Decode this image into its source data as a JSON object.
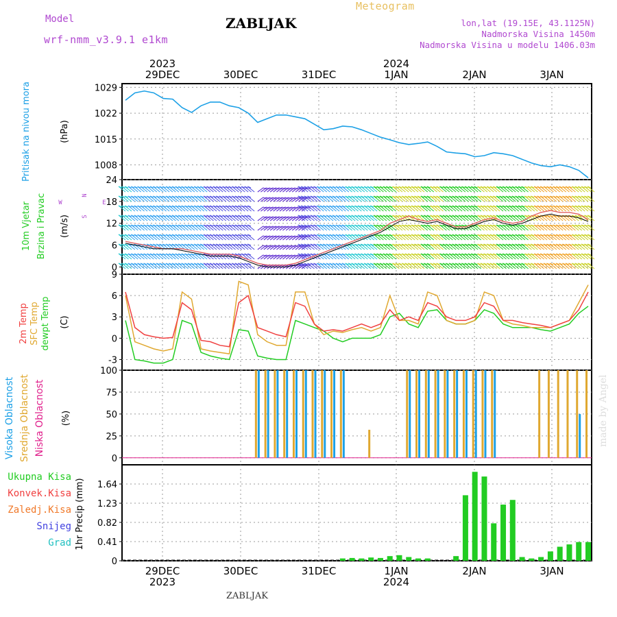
{
  "header": {
    "model_label": "Model",
    "model_name": "wrf-nmm_v3.9.1  e1km",
    "title": "ZABLJAK",
    "subtitle": "Meteogram",
    "coords": "lon,lat (19.15E, 43.1125N)",
    "altitude": "Nadmorska Visina 1450m",
    "model_altitude": "Nadmorska Visina u modelu 1406.03m",
    "footer_station": "ZABLJAK",
    "watermark": "made by Angel"
  },
  "colors": {
    "pressure": "#1ca0e6",
    "temp2m": "#f04040",
    "sfc": "#e0a830",
    "dewpt": "#22cc22",
    "high_cloud": "#1ca0e6",
    "mid_cloud": "#e0a830",
    "low_cloud": "#e0208c",
    "precip": "#22cc22",
    "convective": "#f04040",
    "freezing": "#f07828",
    "snow": "#4040e0",
    "graupel": "#20c0c0",
    "purple": "#b048d0",
    "gold": "#e8c060"
  },
  "time_axis": {
    "top_years": [
      "2023",
      "2024"
    ],
    "days": [
      "29DEC",
      "30DEC",
      "31DEC",
      "1JAN",
      "2JAN",
      "3JAN"
    ],
    "bottom_years": [
      "2023",
      "2024"
    ]
  },
  "chart_data": [
    {
      "type": "line",
      "panel": "pressure",
      "ylabel_main": "Pritisak na nivou mora",
      "ylabel_unit": "(hPa)",
      "x_hours": [
        0,
        3,
        6,
        9,
        12,
        15,
        18,
        21,
        24,
        27,
        30,
        33,
        36,
        39,
        42,
        45,
        48,
        51,
        54,
        57,
        60,
        63,
        66,
        69,
        72,
        75,
        78,
        81,
        84,
        87,
        90,
        93,
        96,
        99,
        102,
        105,
        108,
        111,
        114,
        117,
        120,
        123,
        126,
        129,
        132,
        135,
        138,
        141,
        144,
        147
      ],
      "series": [
        {
          "values": [
            1025.5,
            1027.5,
            1028,
            1027.5,
            1026,
            1025.8,
            1023.5,
            1022.2,
            1024,
            1025,
            1025,
            1024,
            1023.5,
            1022,
            1019.5,
            1020.5,
            1021.5,
            1021.5,
            1021,
            1020.5,
            1019,
            1017.5,
            1017.8,
            1018.5,
            1018.3,
            1017.5,
            1016.5,
            1015.5,
            1014.8,
            1014,
            1013.5,
            1013.8,
            1014.2,
            1013,
            1011.5,
            1011.2,
            1011,
            1010.2,
            1010.5,
            1011.3,
            1011,
            1010.5,
            1009.5,
            1008.5,
            1007.8,
            1007.5,
            1008,
            1007.5,
            1006.5,
            1004.5
          ]
        }
      ],
      "yticks": [
        1008,
        1015,
        1022,
        1029
      ],
      "ylim": [
        1004,
        1030
      ]
    },
    {
      "type": "line",
      "panel": "wind",
      "ylabel_main": "10m Vjetar",
      "ylabel_sub": "Brzina i Pravac",
      "ylabel_unit": "(m/s)",
      "compass": {
        "n": "N",
        "s": "S",
        "e": "E",
        "w": "W"
      },
      "x_hours": [
        0,
        3,
        6,
        9,
        12,
        15,
        18,
        21,
        24,
        27,
        30,
        33,
        36,
        39,
        42,
        45,
        48,
        51,
        54,
        57,
        60,
        63,
        66,
        69,
        72,
        75,
        78,
        81,
        84,
        87,
        90,
        93,
        96,
        99,
        102,
        105,
        108,
        111,
        114,
        117,
        120,
        123,
        126,
        129,
        132,
        135,
        138,
        141,
        144,
        147
      ],
      "series": [
        {
          "values": [
            7,
            6.5,
            6,
            5.5,
            5,
            5,
            5,
            4.5,
            4,
            3.5,
            3.5,
            3.5,
            3,
            2,
            1,
            0.5,
            0.5,
            0.5,
            1,
            2,
            3,
            4,
            5,
            6,
            7,
            8,
            9,
            10,
            12,
            13,
            14,
            13,
            12.5,
            13,
            12,
            11,
            11,
            12,
            13,
            13.5,
            12.5,
            12,
            12.5,
            14,
            15,
            15.5,
            15,
            15,
            14.5,
            13
          ]
        },
        {
          "values": [
            6.5,
            6,
            5.5,
            5,
            5,
            5,
            4.5,
            4,
            3.5,
            3,
            3,
            3,
            2.5,
            1.5,
            0.5,
            0,
            0,
            0,
            0.5,
            1.5,
            2.5,
            3.5,
            4.5,
            5.5,
            6.5,
            7.5,
            8.5,
            9.5,
            11,
            12.5,
            13,
            12.5,
            12,
            12.5,
            11.5,
            10.5,
            10.5,
            11.5,
            12.5,
            13,
            12,
            11.5,
            12,
            13,
            14,
            14.5,
            14,
            14,
            13.5,
            12.5
          ]
        }
      ],
      "yticks": [
        0,
        6,
        12,
        18,
        24
      ],
      "ylim": [
        -2,
        24
      ]
    },
    {
      "type": "line",
      "panel": "temperature",
      "ylabels": [
        "2m Temp",
        "SFC Temp",
        "dewpt Temp"
      ],
      "ylabel_unit": "(C)",
      "x_hours": [
        0,
        3,
        6,
        9,
        12,
        15,
        18,
        21,
        24,
        27,
        30,
        33,
        36,
        39,
        42,
        45,
        48,
        51,
        54,
        57,
        60,
        63,
        66,
        69,
        72,
        75,
        78,
        81,
        84,
        87,
        90,
        93,
        96,
        99,
        102,
        105,
        108,
        111,
        114,
        117,
        120,
        123,
        126,
        129,
        132,
        135,
        138,
        141,
        144,
        147
      ],
      "series": [
        {
          "name": "2m Temp",
          "values": [
            6.5,
            1.5,
            0.5,
            0.2,
            0,
            0.1,
            5,
            4,
            -0.3,
            -0.5,
            -1,
            -1.2,
            5,
            6,
            1.5,
            1,
            0.5,
            0.2,
            5,
            4.5,
            2,
            1,
            1.2,
            1,
            1.5,
            2,
            1.5,
            2,
            4,
            2.5,
            3,
            2.5,
            5,
            4.5,
            3,
            2.5,
            2.5,
            3,
            5,
            4.5,
            2.5,
            2.5,
            2.2,
            2,
            1.8,
            1.5,
            2,
            2.5,
            4,
            6.5
          ]
        },
        {
          "name": "SFC Temp",
          "values": [
            6,
            -0.5,
            -1,
            -1.5,
            -1.8,
            -1.5,
            6.5,
            5.5,
            -1.5,
            -1.8,
            -2,
            -2.2,
            8,
            7.5,
            0.5,
            -0.5,
            -1,
            -1,
            6.5,
            6.5,
            2,
            0.5,
            1,
            0.8,
            1.2,
            1.5,
            1,
            1.5,
            6,
            2.5,
            2.5,
            2,
            6.5,
            6,
            2.5,
            2,
            2,
            2.5,
            6.5,
            6,
            2.5,
            2,
            1.8,
            1.5,
            1.5,
            1.5,
            2,
            2.5,
            5,
            7.5
          ]
        },
        {
          "name": "dewpt Temp",
          "values": [
            2.5,
            -3,
            -3.2,
            -3.5,
            -3.5,
            -3,
            2.5,
            2,
            -2,
            -2.5,
            -2.8,
            -3,
            1.2,
            1,
            -2.5,
            -2.8,
            -3,
            -3,
            2.5,
            2,
            1.5,
            1,
            0,
            -0.5,
            0,
            0,
            0,
            0.5,
            3,
            3.5,
            2,
            1.5,
            3.8,
            4,
            2.5,
            2,
            2,
            2.5,
            4,
            3.5,
            2,
            1.5,
            1.5,
            1.5,
            1.2,
            1,
            1.5,
            2,
            3.5,
            4.5
          ]
        }
      ],
      "yticks": [
        -3,
        0,
        3,
        6,
        9
      ],
      "ylim": [
        -4.5,
        9
      ]
    },
    {
      "type": "bar",
      "panel": "cloud",
      "ylabels": [
        "Visoka Oblacnost",
        "Srednja Oblacnost",
        "Niska Oblacnost"
      ],
      "ylabel_unit": "(%)",
      "x_hours": [
        0,
        3,
        6,
        9,
        12,
        15,
        18,
        21,
        24,
        27,
        30,
        33,
        36,
        39,
        42,
        45,
        48,
        51,
        54,
        57,
        60,
        63,
        66,
        69,
        72,
        75,
        78,
        81,
        84,
        87,
        90,
        93,
        96,
        99,
        102,
        105,
        108,
        111,
        114,
        117,
        120,
        123,
        126,
        129,
        132,
        135,
        138,
        141,
        144,
        147
      ],
      "series": [
        {
          "name": "Visoka Oblacnost",
          "values": [
            0,
            0,
            0,
            0,
            0,
            0,
            0,
            0,
            0,
            0,
            0,
            0,
            0,
            0,
            100,
            100,
            100,
            100,
            100,
            100,
            100,
            100,
            100,
            100,
            0,
            0,
            0,
            0,
            0,
            0,
            100,
            100,
            100,
            100,
            100,
            100,
            100,
            100,
            100,
            100,
            0,
            0,
            0,
            0,
            0,
            0,
            0,
            0,
            50,
            0
          ]
        },
        {
          "name": "Srednja Oblacnost",
          "values": [
            0,
            0,
            0,
            0,
            0,
            0,
            0,
            0,
            0,
            0,
            0,
            0,
            0,
            0,
            100,
            100,
            100,
            100,
            100,
            100,
            100,
            100,
            100,
            100,
            0,
            0,
            32,
            0,
            0,
            0,
            100,
            100,
            100,
            100,
            100,
            100,
            100,
            100,
            100,
            100,
            0,
            0,
            0,
            0,
            100,
            100,
            100,
            100,
            100,
            100
          ]
        },
        {
          "name": "Niska Oblacnost",
          "values": [
            0,
            0,
            0,
            0,
            0,
            0,
            0,
            0,
            0,
            0,
            0,
            0,
            0,
            0,
            0,
            0,
            0,
            0,
            0,
            0,
            0,
            0,
            0,
            0,
            0,
            0,
            0,
            0,
            0,
            0,
            0,
            0,
            0,
            0,
            0,
            0,
            0,
            0,
            0,
            0,
            0,
            0,
            0,
            0,
            0,
            0,
            0,
            0,
            0,
            0
          ]
        }
      ],
      "yticks": [
        0,
        25,
        50,
        75,
        100
      ],
      "ylim": [
        -8,
        100
      ]
    },
    {
      "type": "bar",
      "panel": "precip",
      "legend": [
        "Ukupna  Kisa",
        "Konvek.Kisa",
        "Zaledj.Kisa",
        "Snijeg",
        "Grad"
      ],
      "ylabel_unit": "1hr Precip (mm)",
      "x_hours": [
        0,
        3,
        6,
        9,
        12,
        15,
        18,
        21,
        24,
        27,
        30,
        33,
        36,
        39,
        42,
        45,
        48,
        51,
        54,
        57,
        60,
        63,
        66,
        69,
        72,
        75,
        78,
        81,
        84,
        87,
        90,
        93,
        96,
        99,
        102,
        105,
        108,
        111,
        114,
        117,
        120,
        123,
        126,
        129,
        132,
        135,
        138,
        141,
        144,
        147
      ],
      "series": [
        {
          "name": "Ukupna  Kisa",
          "values": [
            0,
            0,
            0,
            0,
            0,
            0,
            0,
            0,
            0,
            0,
            0,
            0,
            0,
            0,
            0,
            0,
            0,
            0,
            0,
            0,
            0,
            0,
            0,
            0.05,
            0.06,
            0.05,
            0.07,
            0.06,
            0.1,
            0.12,
            0.08,
            0.05,
            0.05,
            0,
            0,
            0.1,
            1.4,
            1.9,
            1.8,
            0.8,
            1.2,
            1.3,
            0.08,
            0.05,
            0.08,
            0.2,
            0.3,
            0.35,
            0.4,
            0.4
          ]
        }
      ],
      "yticks": [
        0,
        0.41,
        0.82,
        1.23,
        1.64
      ],
      "ylim": [
        0,
        2.05
      ]
    }
  ]
}
